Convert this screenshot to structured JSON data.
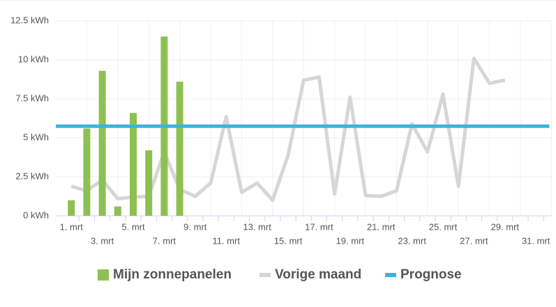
{
  "chart_data": {
    "type": "bar",
    "categories": [
      "1. mrt",
      null,
      "3. mrt",
      null,
      "5. mrt",
      null,
      "7. mrt",
      null,
      "9. mrt",
      null,
      "11. mrt",
      null,
      "13. mrt",
      null,
      "15. mrt",
      null,
      "17. mrt",
      null,
      "19. mrt",
      null,
      "21. mrt",
      null,
      "23. mrt",
      null,
      "25. mrt",
      null,
      "27. mrt",
      null,
      "29. mrt",
      null,
      "31. mrt"
    ],
    "series": [
      {
        "name": "Mijn zonnepanelen",
        "color": "#8cc152",
        "type": "bar",
        "values": [
          1.0,
          5.6,
          9.3,
          0.6,
          6.6,
          4.2,
          11.5,
          8.6,
          null,
          null,
          null,
          null,
          null,
          null,
          null,
          null,
          null,
          null,
          null,
          null,
          null,
          null,
          null,
          null,
          null,
          null,
          null,
          null,
          null,
          null,
          null
        ]
      },
      {
        "name": "Vorige maand",
        "color": "#d6d6d6",
        "type": "line",
        "values": [
          1.9,
          1.6,
          2.3,
          1.1,
          1.2,
          1.25,
          4.1,
          1.7,
          1.25,
          2.1,
          6.35,
          1.5,
          2.1,
          1.0,
          3.9,
          8.7,
          8.9,
          1.4,
          7.6,
          1.3,
          1.25,
          1.6,
          5.9,
          4.1,
          7.8,
          1.9,
          10.1,
          8.5,
          8.7,
          null,
          null
        ]
      },
      {
        "name": "Prognose",
        "color": "#3bb4dc",
        "type": "hline",
        "value": 5.75
      }
    ],
    "ylim": [
      0,
      12.5
    ],
    "yticks": [
      {
        "value": 0,
        "label": "0 kWh"
      },
      {
        "value": 2.5,
        "label": "2.5 kWh"
      },
      {
        "value": 5,
        "label": "5 kWh"
      },
      {
        "value": 7.5,
        "label": "7.5 kWh"
      },
      {
        "value": 10,
        "label": "10 kWh"
      },
      {
        "value": 12.5,
        "label": "12.5 kWh"
      }
    ],
    "grid": true,
    "legend": "bottom"
  }
}
